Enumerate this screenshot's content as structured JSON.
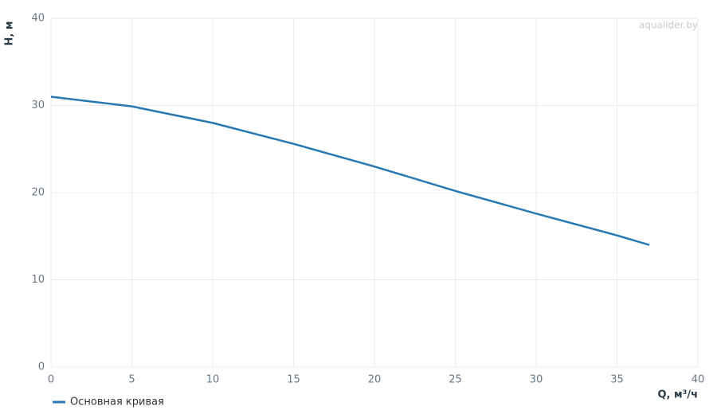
{
  "chart_data": {
    "type": "line",
    "watermark": "aqualider.by",
    "x_label": "Q, м³/ч",
    "y_label": "H, м",
    "x": [
      0,
      5,
      10,
      15,
      20,
      25,
      30,
      35,
      37
    ],
    "series": [
      {
        "name": "Основная кривая",
        "color": "#2878b4",
        "values": [
          31,
          29.9,
          28,
          25.6,
          23,
          20.2,
          17.6,
          15.1,
          14
        ]
      }
    ],
    "xlim": [
      0,
      40
    ],
    "xticks": [
      0,
      5,
      10,
      15,
      20,
      25,
      30,
      35,
      40
    ],
    "ylim": [
      0,
      40
    ],
    "yticks": [
      0,
      10,
      20,
      30,
      40
    ],
    "grid": true,
    "legend": "bottom-left"
  }
}
